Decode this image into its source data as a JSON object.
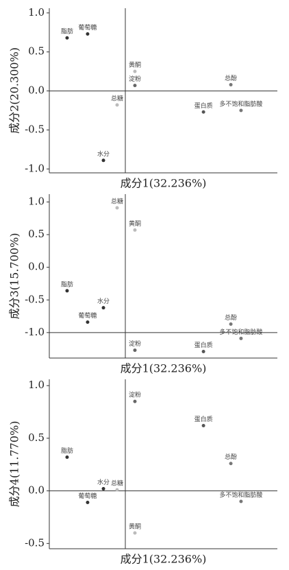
{
  "chart_data": [
    {
      "type": "scatter",
      "xlabel": "成分1(32.236%)",
      "ylabel": "成分2(20.300%)",
      "labels": [
        "脂肪",
        "葡萄糖",
        "黄酮",
        "淀粉",
        "总酚",
        "总糖",
        "蛋白质",
        "多不饱和脂肪酸",
        "水分"
      ],
      "x": [
        -0.383,
        -0.248,
        0.063,
        0.063,
        0.694,
        -0.054,
        0.514,
        0.761,
        -0.144
      ],
      "values": [
        0.68,
        0.73,
        0.25,
        0.07,
        0.08,
        -0.18,
        -0.27,
        -0.25,
        -0.89
      ],
      "colors": [
        "#333333",
        "#333333",
        "#bbbbbb",
        "#666666",
        "#777777",
        "#bbbbbb",
        "#555555",
        "#777777",
        "#333333"
      ],
      "xlim": [
        -0.5,
        1.0
      ],
      "ylim": [
        -1.05,
        1.06
      ],
      "cross_y": 0,
      "yticks": [
        {
          "value": 1,
          "label": "1.0"
        },
        0.5,
        {
          "value": 0,
          "label": "0.0"
        },
        -0.5,
        {
          "value": -1,
          "label": "-1.0"
        }
      ]
    },
    {
      "type": "scatter",
      "xlabel": "成分1(32.236%)",
      "ylabel": "成分3(15.700%)",
      "labels": [
        "总糖",
        "黄酮",
        "脂肪",
        "水分",
        "葡萄糖",
        "总酚",
        "多不饱和脂肪酸",
        "淀粉",
        "蛋白质"
      ],
      "x": [
        -0.054,
        0.063,
        -0.383,
        -0.144,
        -0.248,
        0.694,
        0.761,
        0.063,
        0.514
      ],
      "values": [
        0.91,
        0.57,
        -0.36,
        -0.62,
        -0.84,
        -0.87,
        -1.09,
        -1.27,
        -1.29
      ],
      "colors": [
        "#bbbbbb",
        "#bbbbbb",
        "#333333",
        "#333333",
        "#333333",
        "#777777",
        "#777777",
        "#666666",
        "#555555"
      ],
      "xlim": [
        -0.5,
        1.0
      ],
      "ylim": [
        -1.39,
        1.12
      ],
      "cross_y": -1,
      "yticks": [
        {
          "value": 1,
          "label": "1.0"
        },
        0.5,
        {
          "value": 0,
          "label": "0.0"
        },
        -0.5,
        {
          "value": -1,
          "label": "-1.0"
        }
      ]
    },
    {
      "type": "scatter",
      "xlabel": "成分1(32.236%)",
      "ylabel": "成分4(11.770%)",
      "labels": [
        "淀粉",
        "蛋白质",
        "总酚",
        "脂肪",
        "水分",
        "总糖",
        "多不饱和脂肪酸",
        "葡萄糖",
        "黄酮"
      ],
      "x": [
        0.063,
        0.514,
        0.694,
        -0.383,
        -0.144,
        -0.054,
        0.761,
        -0.248,
        0.063
      ],
      "values": [
        0.85,
        0.62,
        0.26,
        0.32,
        0.02,
        0.01,
        -0.1,
        -0.11,
        -0.4
      ],
      "colors": [
        "#666666",
        "#555555",
        "#777777",
        "#333333",
        "#333333",
        "#bbbbbb",
        "#777777",
        "#333333",
        "#bbbbbb"
      ],
      "xlim": [
        -0.5,
        1.0
      ],
      "ylim": [
        -0.55,
        1.06
      ],
      "cross_y": 0,
      "yticks": [
        {
          "value": 1,
          "label": "1.0"
        },
        0.5,
        {
          "value": 0,
          "label": "0.0"
        },
        -0.5
      ]
    }
  ]
}
